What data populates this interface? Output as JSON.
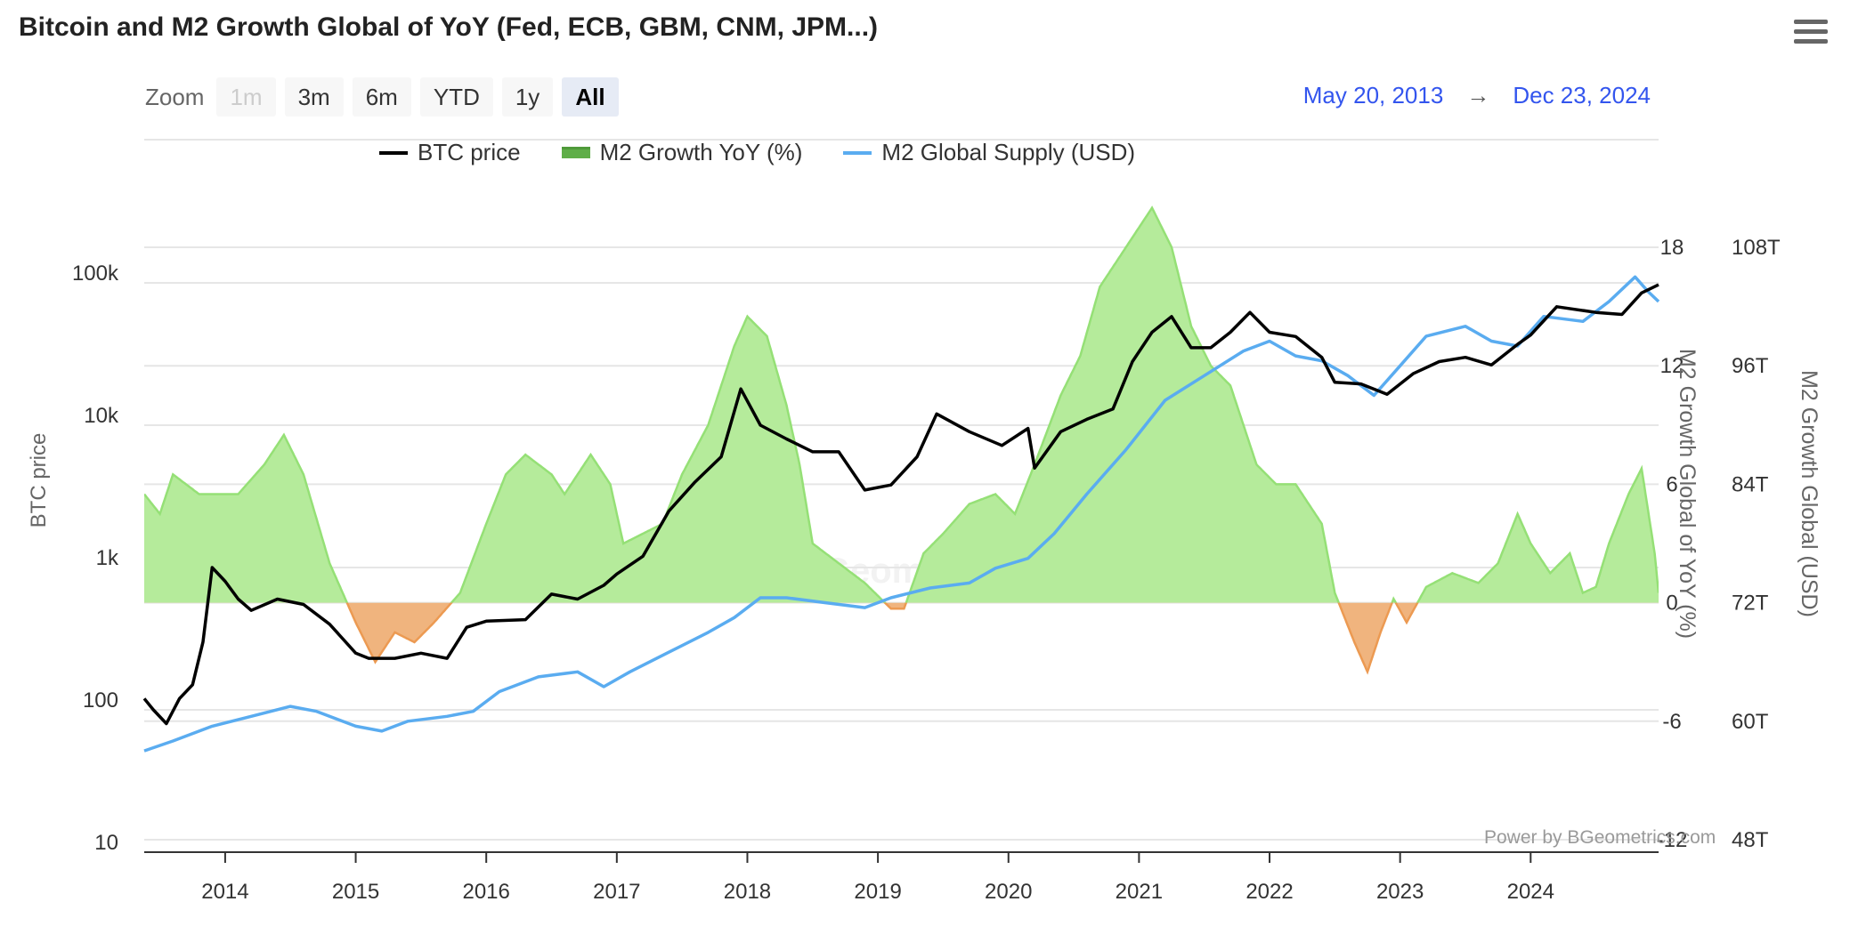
{
  "title": "Bitcoin and M2 Growth Global of YoY (Fed, ECB, GBM, CNM, JPM...)",
  "toolbar": {
    "zoom_label": "Zoom",
    "buttons": [
      "1m",
      "3m",
      "6m",
      "YTD",
      "1y",
      "All"
    ],
    "active": "All",
    "disabled": [
      "1m"
    ]
  },
  "range": {
    "from": "May 20, 2013",
    "arrow": "→",
    "to": "Dec 23, 2024"
  },
  "credit": "Power by BGeometrics.com",
  "watermark": "BGeometrics",
  "colors": {
    "btc": "#000000",
    "m2_supply": "#5aacf0",
    "growth_positive": "#b5eb9b",
    "growth_positive_line": "#95e076",
    "growth_negative": "#f0b47e",
    "growth_negative_line": "#ec9a52",
    "legend_growth": "#4f9a3a"
  },
  "chart_data": {
    "type": "line",
    "title": "Bitcoin and M2 Growth Global of YoY (Fed, ECB, GBM, CNM, JPM...)",
    "x_ticks": [
      "2014",
      "2015",
      "2016",
      "2017",
      "2018",
      "2019",
      "2020",
      "2021",
      "2022",
      "2023",
      "2024"
    ],
    "x_range": [
      "2013-05-20",
      "2024-12-23"
    ],
    "axes": {
      "btc": {
        "label": "BTC price",
        "scale": "log",
        "range": [
          10,
          100000
        ],
        "ticks": [
          "10",
          "100",
          "1k",
          "10k",
          "100k"
        ]
      },
      "growth": {
        "label": "M2 Growth Global of YoY (%)",
        "range": [
          -12,
          18
        ],
        "ticks": [
          "-12",
          "-6",
          "0",
          "6",
          "12",
          "18"
        ]
      },
      "supply": {
        "label": "M2 Growth Global (USD)",
        "range": [
          48,
          108
        ],
        "ticks": [
          "48T",
          "60T",
          "72T",
          "84T",
          "96T",
          "108T"
        ]
      }
    },
    "legend": [
      "BTC price",
      "M2 Growth YoY (%)",
      "M2 Global Supply (USD)"
    ],
    "grid": true,
    "series": [
      {
        "name": "BTC price",
        "axis": "btc",
        "points": [
          [
            2013.38,
            120
          ],
          [
            2013.45,
            100
          ],
          [
            2013.55,
            80
          ],
          [
            2013.65,
            120
          ],
          [
            2013.75,
            150
          ],
          [
            2013.83,
            300
          ],
          [
            2013.9,
            1000
          ],
          [
            2014.0,
            800
          ],
          [
            2014.1,
            600
          ],
          [
            2014.2,
            500
          ],
          [
            2014.4,
            600
          ],
          [
            2014.6,
            550
          ],
          [
            2014.8,
            400
          ],
          [
            2015.0,
            250
          ],
          [
            2015.1,
            230
          ],
          [
            2015.3,
            230
          ],
          [
            2015.5,
            250
          ],
          [
            2015.7,
            230
          ],
          [
            2015.85,
            380
          ],
          [
            2016.0,
            420
          ],
          [
            2016.3,
            430
          ],
          [
            2016.5,
            650
          ],
          [
            2016.7,
            600
          ],
          [
            2016.9,
            750
          ],
          [
            2017.0,
            900
          ],
          [
            2017.2,
            1200
          ],
          [
            2017.4,
            2500
          ],
          [
            2017.6,
            4000
          ],
          [
            2017.8,
            6000
          ],
          [
            2017.95,
            18000
          ],
          [
            2018.1,
            10000
          ],
          [
            2018.3,
            8000
          ],
          [
            2018.5,
            6500
          ],
          [
            2018.7,
            6500
          ],
          [
            2018.9,
            3500
          ],
          [
            2019.1,
            3800
          ],
          [
            2019.3,
            6000
          ],
          [
            2019.45,
            12000
          ],
          [
            2019.7,
            9000
          ],
          [
            2019.95,
            7200
          ],
          [
            2020.15,
            9500
          ],
          [
            2020.2,
            5000
          ],
          [
            2020.4,
            9000
          ],
          [
            2020.6,
            11000
          ],
          [
            2020.8,
            13000
          ],
          [
            2020.95,
            28000
          ],
          [
            2021.1,
            45000
          ],
          [
            2021.25,
            58000
          ],
          [
            2021.4,
            35000
          ],
          [
            2021.55,
            35000
          ],
          [
            2021.7,
            45000
          ],
          [
            2021.85,
            62000
          ],
          [
            2022.0,
            45000
          ],
          [
            2022.2,
            42000
          ],
          [
            2022.4,
            30000
          ],
          [
            2022.5,
            20000
          ],
          [
            2022.7,
            19500
          ],
          [
            2022.9,
            16500
          ],
          [
            2023.1,
            23000
          ],
          [
            2023.3,
            28000
          ],
          [
            2023.5,
            30000
          ],
          [
            2023.7,
            26500
          ],
          [
            2023.9,
            37000
          ],
          [
            2024.0,
            43000
          ],
          [
            2024.2,
            68000
          ],
          [
            2024.5,
            62000
          ],
          [
            2024.7,
            60000
          ],
          [
            2024.85,
            85000
          ],
          [
            2024.98,
            97000
          ]
        ]
      },
      {
        "name": "M2 Growth YoY (%)",
        "axis": "growth",
        "points": [
          [
            2013.38,
            5.5
          ],
          [
            2013.5,
            4.5
          ],
          [
            2013.6,
            6.5
          ],
          [
            2013.8,
            5.5
          ],
          [
            2014.1,
            5.5
          ],
          [
            2014.3,
            7.0
          ],
          [
            2014.45,
            8.5
          ],
          [
            2014.6,
            6.5
          ],
          [
            2014.8,
            2.0
          ],
          [
            2015.0,
            -1.0
          ],
          [
            2015.15,
            -3.0
          ],
          [
            2015.3,
            -1.5
          ],
          [
            2015.45,
            -2.0
          ],
          [
            2015.6,
            -1.0
          ],
          [
            2015.8,
            0.5
          ],
          [
            2016.0,
            4.0
          ],
          [
            2016.15,
            6.5
          ],
          [
            2016.3,
            7.5
          ],
          [
            2016.5,
            6.5
          ],
          [
            2016.6,
            5.5
          ],
          [
            2016.8,
            7.5
          ],
          [
            2016.95,
            6.0
          ],
          [
            2017.05,
            3.0
          ],
          [
            2017.2,
            3.5
          ],
          [
            2017.35,
            4.0
          ],
          [
            2017.5,
            6.5
          ],
          [
            2017.7,
            9.0
          ],
          [
            2017.9,
            13.0
          ],
          [
            2018.0,
            14.5
          ],
          [
            2018.15,
            13.5
          ],
          [
            2018.3,
            10.0
          ],
          [
            2018.4,
            7.0
          ],
          [
            2018.5,
            3.0
          ],
          [
            2018.7,
            2.0
          ],
          [
            2018.9,
            1.0
          ],
          [
            2019.1,
            -0.3
          ],
          [
            2019.2,
            -0.3
          ],
          [
            2019.35,
            2.5
          ],
          [
            2019.5,
            3.5
          ],
          [
            2019.7,
            5.0
          ],
          [
            2019.9,
            5.5
          ],
          [
            2020.05,
            4.5
          ],
          [
            2020.2,
            7.0
          ],
          [
            2020.4,
            10.5
          ],
          [
            2020.55,
            12.5
          ],
          [
            2020.7,
            16.0
          ],
          [
            2020.9,
            18.0
          ],
          [
            2021.1,
            20.0
          ],
          [
            2021.25,
            18.0
          ],
          [
            2021.4,
            14.0
          ],
          [
            2021.55,
            12.0
          ],
          [
            2021.7,
            11.0
          ],
          [
            2021.9,
            7.0
          ],
          [
            2022.05,
            6.0
          ],
          [
            2022.2,
            6.0
          ],
          [
            2022.4,
            4.0
          ],
          [
            2022.5,
            0.5
          ],
          [
            2022.65,
            -2.0
          ],
          [
            2022.75,
            -3.5
          ],
          [
            2022.85,
            -1.5
          ],
          [
            2022.95,
            0.2
          ],
          [
            2023.05,
            -1.0
          ],
          [
            2023.2,
            0.8
          ],
          [
            2023.4,
            1.5
          ],
          [
            2023.6,
            1.0
          ],
          [
            2023.75,
            2.0
          ],
          [
            2023.9,
            4.5
          ],
          [
            2024.0,
            3.0
          ],
          [
            2024.15,
            1.5
          ],
          [
            2024.3,
            2.5
          ],
          [
            2024.4,
            0.5
          ],
          [
            2024.5,
            0.8
          ],
          [
            2024.6,
            3.0
          ],
          [
            2024.75,
            5.5
          ],
          [
            2024.85,
            6.8
          ],
          [
            2024.95,
            2.5
          ],
          [
            2024.98,
            0.5
          ]
        ]
      },
      {
        "name": "M2 Global Supply (USD)",
        "axis": "supply",
        "points": [
          [
            2013.38,
            57.0
          ],
          [
            2013.6,
            58.0
          ],
          [
            2013.9,
            59.5
          ],
          [
            2014.2,
            60.5
          ],
          [
            2014.5,
            61.5
          ],
          [
            2014.7,
            61.0
          ],
          [
            2015.0,
            59.5
          ],
          [
            2015.2,
            59.0
          ],
          [
            2015.4,
            60.0
          ],
          [
            2015.7,
            60.5
          ],
          [
            2015.9,
            61.0
          ],
          [
            2016.1,
            63.0
          ],
          [
            2016.4,
            64.5
          ],
          [
            2016.7,
            65.0
          ],
          [
            2016.9,
            63.5
          ],
          [
            2017.1,
            65.0
          ],
          [
            2017.4,
            67.0
          ],
          [
            2017.7,
            69.0
          ],
          [
            2017.9,
            70.5
          ],
          [
            2018.1,
            72.5
          ],
          [
            2018.3,
            72.5
          ],
          [
            2018.6,
            72.0
          ],
          [
            2018.9,
            71.5
          ],
          [
            2019.1,
            72.5
          ],
          [
            2019.4,
            73.5
          ],
          [
            2019.7,
            74.0
          ],
          [
            2019.9,
            75.5
          ],
          [
            2020.15,
            76.5
          ],
          [
            2020.35,
            79.0
          ],
          [
            2020.6,
            83.0
          ],
          [
            2020.9,
            87.5
          ],
          [
            2021.2,
            92.5
          ],
          [
            2021.5,
            95.0
          ],
          [
            2021.8,
            97.5
          ],
          [
            2022.0,
            98.5
          ],
          [
            2022.2,
            97.0
          ],
          [
            2022.4,
            96.5
          ],
          [
            2022.6,
            95.0
          ],
          [
            2022.8,
            93.0
          ],
          [
            2023.0,
            96.0
          ],
          [
            2023.2,
            99.0
          ],
          [
            2023.5,
            100.0
          ],
          [
            2023.7,
            98.5
          ],
          [
            2023.9,
            98.0
          ],
          [
            2024.1,
            101.0
          ],
          [
            2024.4,
            100.5
          ],
          [
            2024.6,
            102.5
          ],
          [
            2024.8,
            105.0
          ],
          [
            2024.9,
            103.5
          ],
          [
            2024.98,
            102.5
          ]
        ]
      }
    ]
  }
}
